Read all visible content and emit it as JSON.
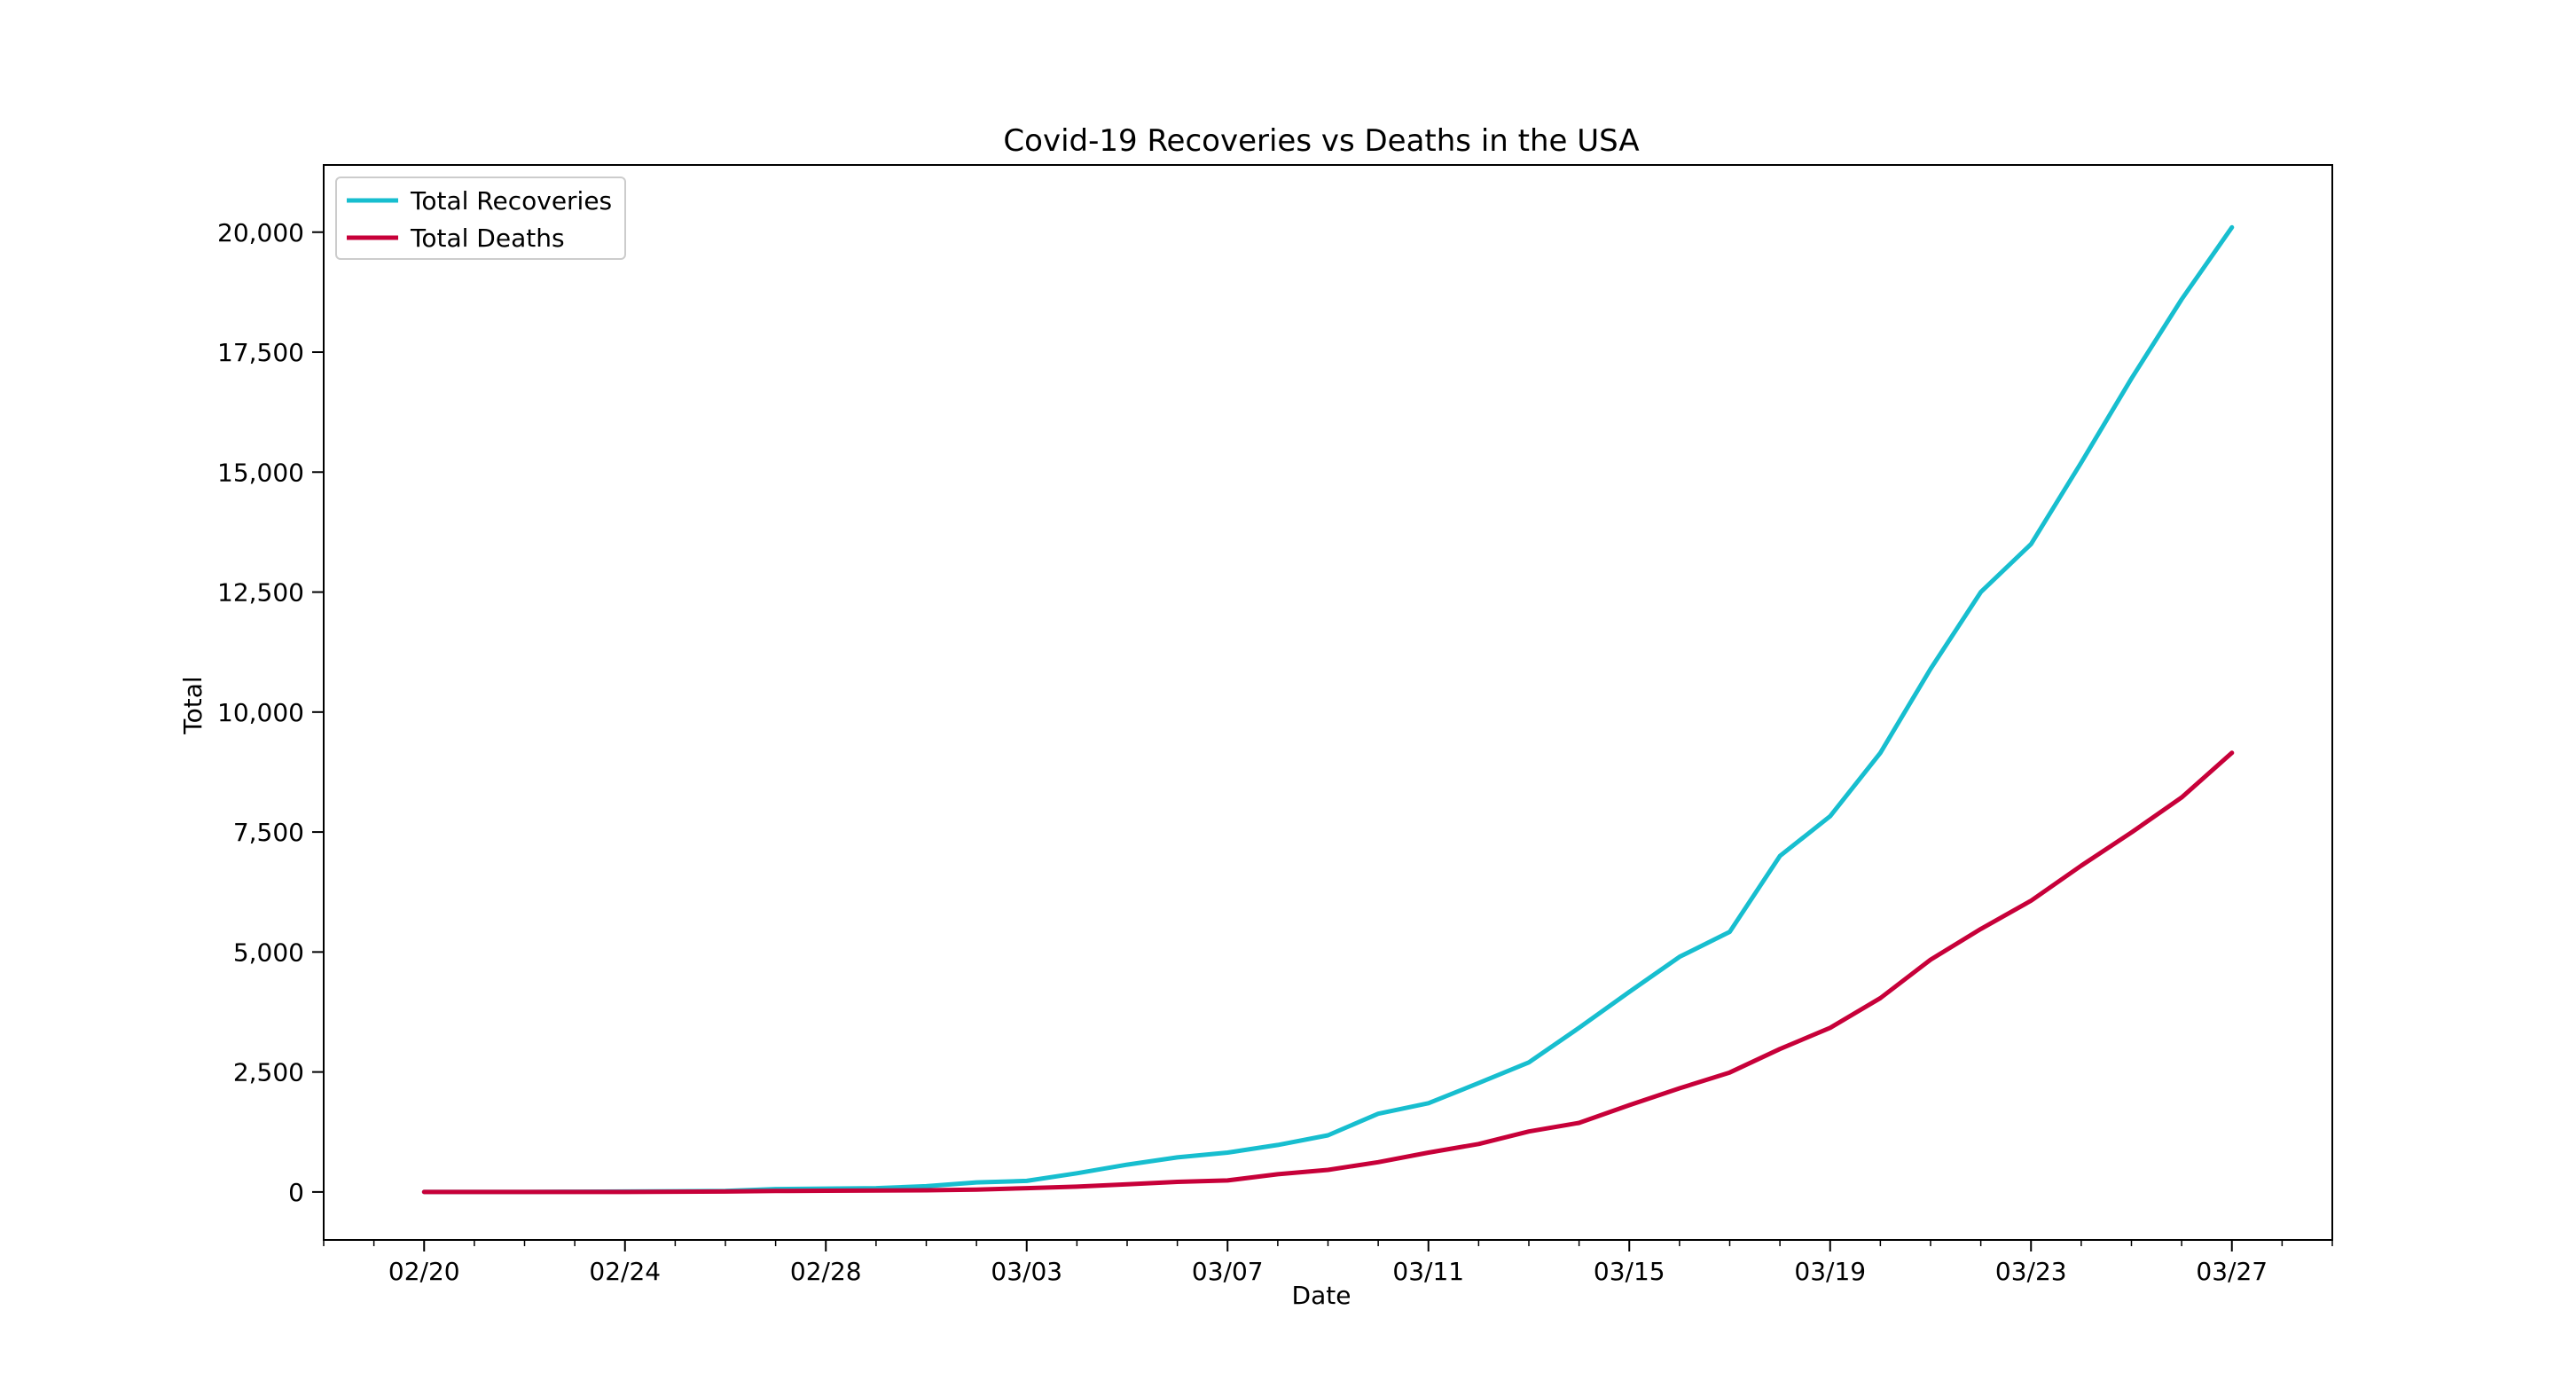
{
  "chart_data": {
    "type": "line",
    "title": "Covid-19 Recoveries vs Deaths in the USA",
    "xlabel": "Date",
    "ylabel": "Total",
    "x": [
      "2020-02-20",
      "2020-02-21",
      "2020-02-22",
      "2020-02-23",
      "2020-02-24",
      "2020-02-25",
      "2020-02-26",
      "2020-02-27",
      "2020-02-28",
      "2020-02-29",
      "2020-03-01",
      "2020-03-02",
      "2020-03-03",
      "2020-03-04",
      "2020-03-05",
      "2020-03-06",
      "2020-03-07",
      "2020-03-08",
      "2020-03-09",
      "2020-03-10",
      "2020-03-11",
      "2020-03-12",
      "2020-03-13",
      "2020-03-14",
      "2020-03-15",
      "2020-03-16",
      "2020-03-17",
      "2020-03-18",
      "2020-03-19",
      "2020-03-20",
      "2020-03-21",
      "2020-03-22",
      "2020-03-23",
      "2020-03-24",
      "2020-03-25",
      "2020-03-26",
      "2020-03-27"
    ],
    "x_ticks": [
      "02/20",
      "02/24",
      "02/28",
      "03/03",
      "03/07",
      "03/11",
      "03/15",
      "03/19",
      "03/23",
      "03/27"
    ],
    "x_range": [
      "2020-02-18",
      "2020-03-29"
    ],
    "ylim": [
      -1000,
      21400
    ],
    "y_ticks": [
      0,
      2500,
      5000,
      7500,
      10000,
      12500,
      15000,
      17500,
      20000
    ],
    "y_tick_labels": [
      "0",
      "2,500",
      "5,000",
      "7,500",
      "10,000",
      "12,500",
      "15,000",
      "17,500",
      "20,000"
    ],
    "grid": false,
    "legend_position": "top-left",
    "series": [
      {
        "name": "Total Recoveries",
        "color": "#17becf",
        "values": [
          0,
          0,
          0,
          5,
          10,
          15,
          20,
          60,
          70,
          80,
          120,
          200,
          230,
          390,
          570,
          720,
          820,
          980,
          1180,
          1630,
          1850,
          2270,
          2700,
          3420,
          4170,
          4900,
          5420,
          7000,
          7830,
          9150,
          10900,
          12500,
          13500,
          15200,
          16950,
          18600,
          20100
        ]
      },
      {
        "name": "Total Deaths",
        "color": "#c70039",
        "values": [
          0,
          0,
          0,
          0,
          0,
          5,
          10,
          20,
          25,
          30,
          35,
          50,
          80,
          110,
          160,
          210,
          240,
          370,
          460,
          620,
          820,
          1000,
          1260,
          1440,
          1810,
          2160,
          2490,
          2980,
          3420,
          4040,
          4840,
          5480,
          6070,
          6800,
          7490,
          8220,
          9150
        ]
      }
    ]
  }
}
